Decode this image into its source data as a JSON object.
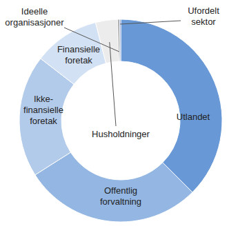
{
  "chart_data": {
    "type": "donut",
    "categories": [
      "Utlandet",
      "Offentlig\nforvaltning",
      "Ikke-\nfinansielle\nforetak",
      "Finansielle\nforetak",
      "Husholdninger",
      "Ideelle\norganisasjoner",
      "Ufordelt\nsektor"
    ],
    "values": [
      37.5,
      28.5,
      19.5,
      10.5,
      3.5,
      0.3,
      0.2
    ],
    "colors": [
      "#6899d6",
      "#93b6e2",
      "#b3cbea",
      "#d3e1f4",
      "#ececec",
      "#9a9a9a",
      "#4f74b8"
    ]
  }
}
